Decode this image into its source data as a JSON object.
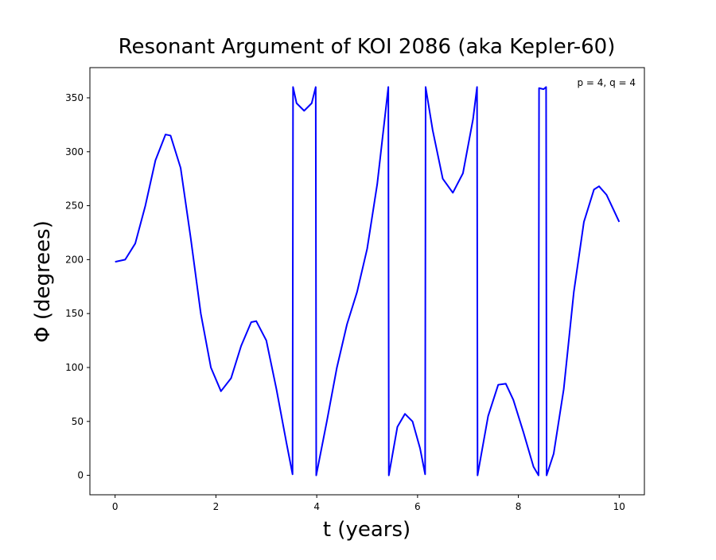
{
  "chart_data": {
    "type": "line",
    "title": "Resonant Argument of KOI 2086 (aka Kepler-60)",
    "x_label": "t (years)",
    "y_label": "Φ (degrees)",
    "annotation": "p = 4, q = 4",
    "x": [
      0,
      0.2,
      0.4,
      0.6,
      0.8,
      1.0,
      1.1,
      1.3,
      1.5,
      1.7,
      1.9,
      2.1,
      2.3,
      2.5,
      2.7,
      2.8,
      3.0,
      3.2,
      3.4,
      3.52,
      3.53,
      3.6,
      3.75,
      3.9,
      3.98,
      3.99,
      4.2,
      4.4,
      4.6,
      4.8,
      5.0,
      5.2,
      5.42,
      5.43,
      5.6,
      5.75,
      5.9,
      6.05,
      6.15,
      6.16,
      6.3,
      6.5,
      6.7,
      6.9,
      7.1,
      7.18,
      7.19,
      7.4,
      7.6,
      7.75,
      7.9,
      8.1,
      8.3,
      8.4,
      8.41,
      8.5,
      8.55,
      8.56,
      8.7,
      8.9,
      9.1,
      9.3,
      9.5,
      9.6,
      9.75,
      9.9,
      10.0
    ],
    "series": [
      {
        "name": "Φ",
        "color": "#0000ff",
        "values": [
          198,
          200,
          215,
          250,
          292,
          316,
          315,
          285,
          220,
          150,
          100,
          78,
          90,
          120,
          142,
          143,
          125,
          80,
          30,
          1,
          360,
          345,
          338,
          345,
          360,
          0,
          50,
          100,
          140,
          170,
          210,
          270,
          360,
          0,
          45,
          57,
          50,
          25,
          1,
          360,
          320,
          275,
          262,
          280,
          330,
          360,
          0,
          55,
          84,
          85,
          70,
          40,
          8,
          0,
          359,
          358,
          360,
          0,
          20,
          80,
          170,
          235,
          265,
          268,
          260,
          245,
          235
        ]
      }
    ],
    "xlim": [
      -0.5,
      10.5
    ],
    "ylim": [
      -18,
      378
    ],
    "xticks": [
      0,
      2,
      4,
      6,
      8,
      10
    ],
    "yticks": [
      0,
      50,
      100,
      150,
      200,
      250,
      300,
      350
    ]
  }
}
